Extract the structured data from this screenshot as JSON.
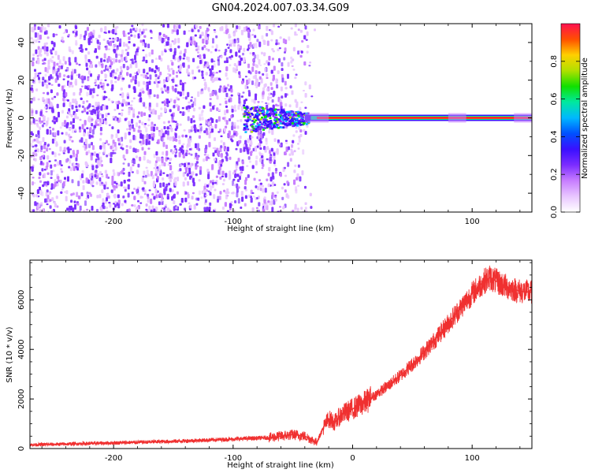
{
  "title": "GN04.2024.007.03.34.G09",
  "colors": {
    "snr_line": "#f03030",
    "colorbar": [
      "#ffffff",
      "#e8c6ff",
      "#c77dff",
      "#7b2cff",
      "#3a10ff",
      "#0050ff",
      "#00b8ff",
      "#00e8a0",
      "#10e000",
      "#b0e000",
      "#ffd000",
      "#ff5000",
      "#ff1050"
    ]
  },
  "chart_data": [
    {
      "type": "heatmap",
      "xlabel": "Height of straight line (km)",
      "ylabel": "Frequency (Hz)",
      "xlim": [
        -270,
        150
      ],
      "ylim": [
        -50,
        50
      ],
      "xticks": [
        -200,
        -100,
        0,
        100
      ],
      "yticks": [
        -40,
        -20,
        0,
        20,
        40
      ],
      "colorbar": {
        "label": "Normalized spectral amplitude",
        "range": [
          0,
          1
        ],
        "ticks": [
          0.0,
          0.2,
          0.4,
          0.6,
          0.8
        ]
      },
      "description_values": {
        "noise_region_x": [
          -270,
          -40
        ],
        "signal_line_frequency_hz": 0,
        "signal_start_x": -90
      }
    },
    {
      "type": "line",
      "xlabel": "Height of straight line (km)",
      "ylabel": "SNR (10 * v/v)",
      "xlim": [
        -270,
        150
      ],
      "ylim": [
        0,
        7600
      ],
      "xticks": [
        -200,
        -100,
        0,
        100
      ],
      "yticks": [
        0,
        2000,
        4000,
        6000
      ],
      "series": [
        {
          "name": "",
          "x": [
            -270,
            -250,
            -200,
            -150,
            -100,
            -70,
            -50,
            -40,
            -30,
            -25,
            -20,
            -15,
            -10,
            0,
            10,
            20,
            30,
            40,
            50,
            60,
            70,
            80,
            90,
            100,
            110,
            115,
            120,
            130,
            140,
            150
          ],
          "y": [
            150,
            170,
            230,
            290,
            380,
            440,
            560,
            500,
            250,
            800,
            1200,
            1050,
            1350,
            1600,
            1850,
            2200,
            2550,
            2950,
            3400,
            3900,
            4450,
            5050,
            5650,
            6250,
            6750,
            6900,
            6750,
            6500,
            6350,
            6300
          ]
        }
      ]
    }
  ]
}
